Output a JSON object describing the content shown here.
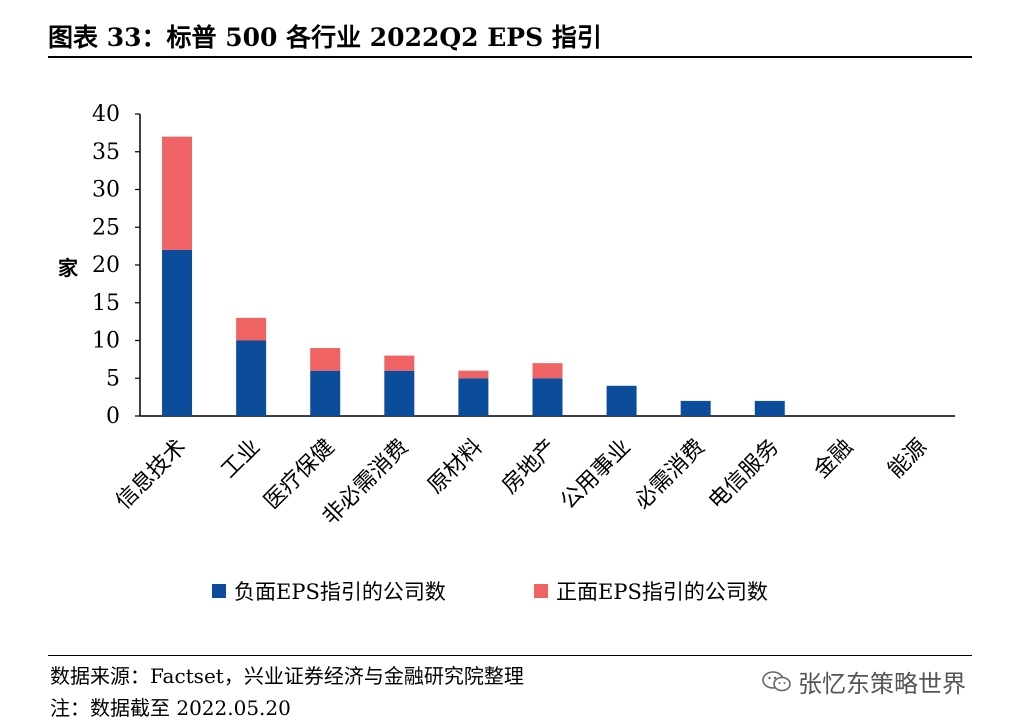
{
  "title": "图表 33：标普 500 各行业 2022Q2 EPS 指引",
  "chart_data": {
    "type": "bar",
    "stacked": true,
    "categories": [
      "信息技术",
      "工业",
      "医疗保健",
      "非必需消费",
      "原材料",
      "房地产",
      "公用事业",
      "必需消费",
      "电信服务",
      "金融",
      "能源"
    ],
    "series": [
      {
        "name": "负面EPS指引的公司数",
        "color": "#0B4D9A",
        "values": [
          22,
          10,
          6,
          6,
          5,
          5,
          4,
          2,
          2,
          0,
          0
        ]
      },
      {
        "name": "正面EPS指引的公司数",
        "color": "#EF6364",
        "values": [
          15,
          3,
          3,
          2,
          1,
          2,
          0,
          0,
          0,
          0,
          0
        ]
      }
    ],
    "ylabel": "家",
    "ylim": [
      0,
      40
    ],
    "yticks": [
      "0",
      "5",
      "10",
      "15",
      "20",
      "25",
      "30",
      "35",
      "40"
    ],
    "grid": false,
    "legend_position": "bottom"
  },
  "footer": {
    "source": "数据来源：Factset，兴业证券经济与金融研究院整理",
    "note": "注：数据截至 2022.05.20"
  },
  "watermark": {
    "icon": "wechat-icon",
    "text": "张忆东策略世界"
  }
}
